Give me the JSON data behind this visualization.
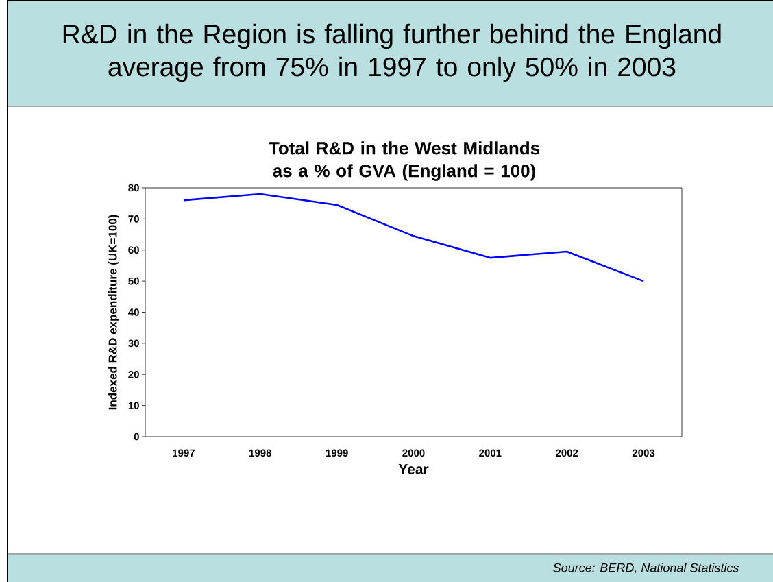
{
  "chart_data": {
    "type": "line",
    "title": "R&D in the Region is falling further behind the England average from 75% in 1997 to only 50% in 2003",
    "subtitle": "Total R&D in the West Midlands as a % of GVA (England = 100)",
    "xlabel": "Year",
    "ylabel": "Indexed R&D expenditure (UK=100)",
    "categories": [
      "1997",
      "1998",
      "1999",
      "2000",
      "2001",
      "2002",
      "2003"
    ],
    "series": [
      {
        "color": "#0000ff",
        "values": [
          76,
          78,
          74.5,
          64.5,
          57.5,
          59.5,
          50
        ]
      }
    ],
    "ylim": [
      0,
      80
    ],
    "yticks": [
      0,
      10,
      20,
      30,
      40,
      50,
      60,
      70,
      80
    ],
    "annotations": [
      "Source: BERD, National Statistics"
    ]
  }
}
